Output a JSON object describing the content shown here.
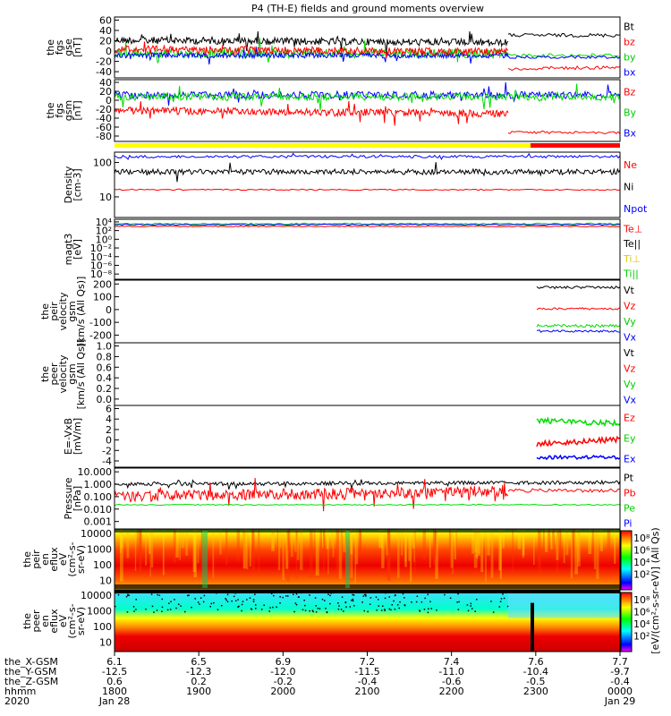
{
  "title": "P4 (TH-E) fields and ground moments overview",
  "colors": {
    "black": "#000000",
    "red": "#ff0000",
    "green": "#00dd00",
    "blue": "#0000ff",
    "yellow": "#ffff00"
  },
  "panels": [
    {
      "id": "fgs_gse",
      "ylabel": [
        "the",
        "fgs",
        "gse",
        "[nT]"
      ],
      "ticks": [
        "60",
        "40",
        "20",
        "0",
        "-20",
        "-40"
      ],
      "legend": [
        {
          "text": "Bt",
          "color": "#000000"
        },
        {
          "text": "bz",
          "color": "#ff0000"
        },
        {
          "text": "by",
          "color": "#00cc00"
        },
        {
          "text": "bx",
          "color": "#0000ff"
        }
      ]
    },
    {
      "id": "fgs_gsm",
      "ylabel": [
        "the",
        "fgs",
        "gsm",
        "[nT]"
      ],
      "ticks": [
        "40",
        "20",
        "0",
        "-20",
        "-40",
        "-60",
        "-80"
      ],
      "legend": [
        {
          "text": "Bz",
          "color": "#ff0000"
        },
        {
          "text": "By",
          "color": "#00cc00"
        },
        {
          "text": "Bx",
          "color": "#0000ff"
        }
      ]
    },
    {
      "id": "density",
      "ylabel": [
        "Density",
        "[cm-3]"
      ],
      "ticks": [
        "100",
        "10"
      ],
      "legend": [
        {
          "text": "Ne",
          "color": "#ff0000"
        },
        {
          "text": "Ni",
          "color": "#000000"
        },
        {
          "text": "Npot",
          "color": "#0000ff"
        }
      ]
    },
    {
      "id": "temp",
      "ylabel": [
        "magt3",
        "[eV]"
      ],
      "ticks": [
        "10⁴",
        "10²",
        "10⁰",
        "10⁻²",
        "10⁻⁴",
        "10⁻⁶",
        "10⁻⁸"
      ],
      "legend": [
        {
          "text": "Te⊥",
          "color": "#ff0000"
        },
        {
          "text": "Te||",
          "color": "#000000"
        },
        {
          "text": "Ti⊥",
          "color": "#ddcc00"
        },
        {
          "text": "Ti||",
          "color": "#00cc00"
        }
      ]
    },
    {
      "id": "peir_vel",
      "ylabel": [
        "the",
        "peir",
        "velocity",
        "gsm",
        "[km/s (All Qs)]"
      ],
      "ticks": [
        "200",
        "100",
        "0",
        "-100",
        "-200"
      ],
      "legend": [
        {
          "text": "Vt",
          "color": "#000000"
        },
        {
          "text": "Vz",
          "color": "#ff0000"
        },
        {
          "text": "Vy",
          "color": "#00cc00"
        },
        {
          "text": "Vx",
          "color": "#0000ff"
        }
      ]
    },
    {
      "id": "peer_vel",
      "ylabel": [
        "the",
        "peer",
        "velocity",
        "gsm",
        "[km/s (All Qs)]"
      ],
      "ticks": [
        "1.0",
        "0.8",
        "0.6",
        "0.4",
        "0.2",
        "0.0"
      ],
      "legend": [
        {
          "text": "Vt",
          "color": "#000000"
        },
        {
          "text": "Vz",
          "color": "#ff0000"
        },
        {
          "text": "Vy",
          "color": "#00cc00"
        },
        {
          "text": "Vx",
          "color": "#0000ff"
        }
      ]
    },
    {
      "id": "efield",
      "ylabel": [
        "E=-VxB",
        "[mV/m]"
      ],
      "ticks": [
        "6",
        "4",
        "2",
        "0",
        "-2",
        "-4"
      ],
      "legend": [
        {
          "text": "Ez",
          "color": "#ff0000"
        },
        {
          "text": "Ey",
          "color": "#00cc00"
        },
        {
          "text": "Ex",
          "color": "#0000ff"
        }
      ]
    },
    {
      "id": "pressure",
      "ylabel": [
        "Pressure",
        "[nPa]"
      ],
      "ticks": [
        "10.000",
        "1.000",
        "0.100",
        "0.010",
        "0.001"
      ],
      "legend": [
        {
          "text": "Pt",
          "color": "#000000"
        },
        {
          "text": "Pb",
          "color": "#ff0000"
        },
        {
          "text": "Pe",
          "color": "#00cc00"
        },
        {
          "text": "Pi",
          "color": "#0000ff"
        }
      ]
    },
    {
      "id": "peir_spec",
      "ylabel": [
        "the",
        "peir",
        "en",
        "eflux",
        "eV",
        "(cm²-s-",
        "sr-eV)"
      ],
      "ticks": [
        "10000",
        "1000",
        "100",
        "10"
      ]
    },
    {
      "id": "peer_spec",
      "ylabel": [
        "the",
        "peer",
        "en",
        "eflux",
        "eV",
        "(cm²-s-",
        "sr-eV)"
      ],
      "ticks": [
        "10000",
        "1000",
        "100",
        "10"
      ]
    }
  ],
  "colorbars": [
    {
      "label": "[eV/(cm²-s-sr-eV)] (All Qs)",
      "ticks": [
        "10⁸",
        "10⁶",
        "10⁴",
        "10²"
      ]
    },
    {
      "label": "[eV/(cm²-s-sr-eV)] (All Qs)",
      "ticks": [
        "10⁸",
        "10⁶",
        "10⁴",
        "10²"
      ]
    }
  ],
  "xaxis": {
    "row_labels": [
      "the_X-GSM",
      "the_Y-GSM",
      "the_Z-GSM",
      "hhmm",
      "2020"
    ],
    "columns": [
      {
        "x": "6.1",
        "y": "-12.5",
        "z": "0.6",
        "hhmm": "1800",
        "date": "Jan 28"
      },
      {
        "x": "6.5",
        "y": "-12.3",
        "z": "0.2",
        "hhmm": "1900",
        "date": ""
      },
      {
        "x": "6.9",
        "y": "-12.0",
        "z": "-0.2",
        "hhmm": "2000",
        "date": ""
      },
      {
        "x": "7.2",
        "y": "-11.5",
        "z": "-0.4",
        "hhmm": "2100",
        "date": ""
      },
      {
        "x": "7.4",
        "y": "-11.0",
        "z": "-0.6",
        "hhmm": "2200",
        "date": ""
      },
      {
        "x": "7.6",
        "y": "-10.4",
        "z": "-0.5",
        "hhmm": "2300",
        "date": ""
      },
      {
        "x": "7.7",
        "y": "-9.7",
        "z": "-0.4",
        "hhmm": "0000",
        "date": "Jan 29"
      }
    ]
  },
  "chart_data": {
    "type": "line",
    "title": "P4 (TH-E) fields and ground moments overview",
    "x_range": [
      "2020-01-28 18:00",
      "2020-01-29 00:00"
    ],
    "series": [
      {
        "name": "Bt",
        "panel": "fgs_gse",
        "approx_level": [
          15,
          35
        ]
      },
      {
        "name": "bz",
        "panel": "fgs_gse",
        "approx_level": [
          5,
          -30
        ]
      },
      {
        "name": "by",
        "panel": "fgs_gse",
        "approx_level": [
          0,
          0
        ]
      },
      {
        "name": "bx",
        "panel": "fgs_gse",
        "approx_level": [
          0,
          -15
        ]
      },
      {
        "name": "Bz",
        "panel": "fgs_gsm",
        "approx_level": [
          -30,
          -70
        ]
      },
      {
        "name": "By",
        "panel": "fgs_gsm",
        "approx_level": [
          15,
          15
        ]
      },
      {
        "name": "Bx",
        "panel": "fgs_gsm",
        "approx_level": [
          15,
          15
        ]
      },
      {
        "name": "Ni",
        "panel": "density",
        "approx_level": [
          40,
          40
        ]
      },
      {
        "name": "Ne",
        "panel": "density",
        "approx_level": [
          9,
          9
        ]
      },
      {
        "name": "Npot",
        "panel": "density",
        "approx_level": [
          150,
          150
        ]
      },
      {
        "name": "Vt",
        "panel": "peir_vel",
        "approx_level": [
          180,
          180
        ]
      },
      {
        "name": "Vz",
        "panel": "peir_vel",
        "approx_level": [
          20,
          20
        ]
      },
      {
        "name": "Vy",
        "panel": "peir_vel",
        "approx_level": [
          -100,
          -100
        ]
      },
      {
        "name": "Vx",
        "panel": "peir_vel",
        "approx_level": [
          -130,
          -130
        ]
      },
      {
        "name": "Ez",
        "panel": "efield",
        "approx_level": [
          0,
          0
        ]
      },
      {
        "name": "Ey",
        "panel": "efield",
        "approx_level": [
          3,
          3
        ]
      },
      {
        "name": "Ex",
        "panel": "efield",
        "approx_level": [
          -2.5,
          -2.5
        ]
      },
      {
        "name": "Pt",
        "panel": "pressure",
        "approx_level": [
          1.5,
          1.5
        ]
      },
      {
        "name": "Pb",
        "panel": "pressure",
        "approx_level": [
          0.3,
          0.3
        ]
      },
      {
        "name": "Pe",
        "panel": "pressure",
        "approx_level": [
          0.05,
          0.05
        ]
      }
    ]
  }
}
